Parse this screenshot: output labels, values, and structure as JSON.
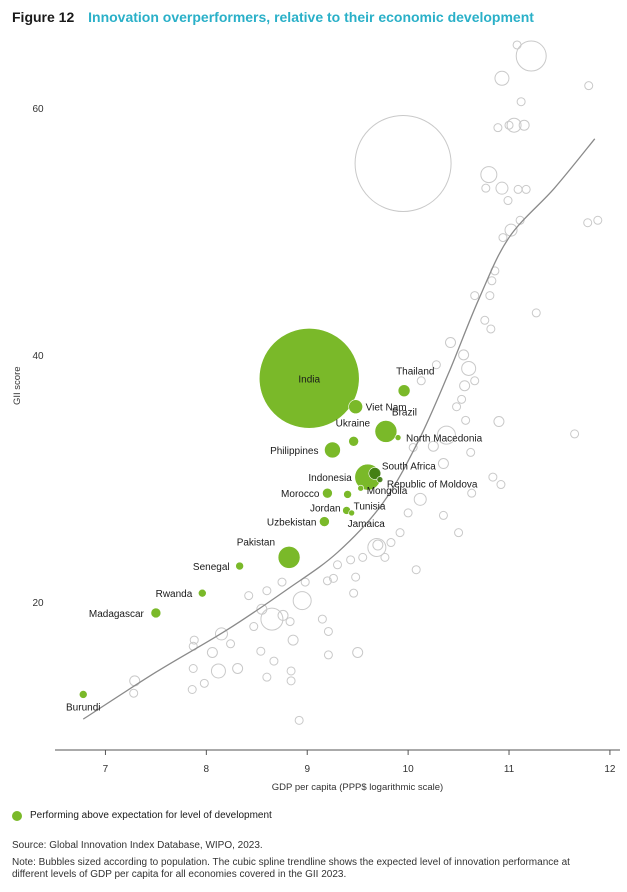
{
  "figure": {
    "label": "Figure 12",
    "title": "Innovation overperformers, relative to their economic development"
  },
  "chart_data": {
    "type": "scatter",
    "xlabel": "GDP per capita (PPP$ logarithmic scale)",
    "ylabel": "GII score",
    "xlim": [
      6.5,
      12.1
    ],
    "ylim": [
      8,
      65.5
    ],
    "xticks": [
      7,
      8,
      9,
      10,
      11,
      12
    ],
    "yticks": [
      20,
      40,
      60
    ],
    "colors": {
      "highlight": "#7ab929",
      "highlight_dark": "#3e7a12",
      "other": "#c9c9c9",
      "trend": "#8a8a8a"
    },
    "highlighted": [
      {
        "name": "India",
        "x": 9.02,
        "y": 38.1,
        "size": 50
      },
      {
        "name": "Thailand",
        "x": 9.96,
        "y": 37.1,
        "size": 6
      },
      {
        "name": "Viet Nam",
        "x": 9.48,
        "y": 35.8,
        "size": 7
      },
      {
        "name": "Brazil",
        "x": 9.78,
        "y": 33.8,
        "size": 11
      },
      {
        "name": "North Macedonia",
        "x": 9.9,
        "y": 33.3,
        "size": 3
      },
      {
        "name": "Ukraine",
        "x": 9.46,
        "y": 33,
        "size": 5
      },
      {
        "name": "Philippines",
        "x": 9.25,
        "y": 32.3,
        "size": 8
      },
      {
        "name": "Indonesia",
        "x": 9.6,
        "y": 30.1,
        "size": 13
      },
      {
        "name": "South Africa",
        "x": 9.67,
        "y": 30.4,
        "size": 6
      },
      {
        "name": "Republic of Moldova",
        "x": 9.72,
        "y": 29.9,
        "size": 3
      },
      {
        "name": "Mongolia",
        "x": 9.53,
        "y": 29.2,
        "size": 3
      },
      {
        "name": "Morocco",
        "x": 9.2,
        "y": 28.8,
        "size": 5
      },
      {
        "name": "Tunisia",
        "x": 9.4,
        "y": 28.7,
        "size": 4
      },
      {
        "name": "Jordan",
        "x": 9.39,
        "y": 27.4,
        "size": 4
      },
      {
        "name": "Jamaica",
        "x": 9.44,
        "y": 27.2,
        "size": 3
      },
      {
        "name": "Uzbekistan",
        "x": 9.17,
        "y": 26.5,
        "size": 5
      },
      {
        "name": "Pakistan",
        "x": 8.82,
        "y": 23.6,
        "size": 11
      },
      {
        "name": "Senegal",
        "x": 8.33,
        "y": 22.9,
        "size": 4
      },
      {
        "name": "Rwanda",
        "x": 7.96,
        "y": 20.7,
        "size": 4
      },
      {
        "name": "Madagascar",
        "x": 7.5,
        "y": 19.1,
        "size": 5
      },
      {
        "name": "Burundi",
        "x": 6.78,
        "y": 12.5,
        "size": 4
      }
    ],
    "others": [
      {
        "x": 9.95,
        "y": 55.5,
        "size": 48
      },
      {
        "x": 11.22,
        "y": 64.2,
        "size": 15
      },
      {
        "x": 11.08,
        "y": 65.1,
        "size": 4
      },
      {
        "x": 10.93,
        "y": 62.4,
        "size": 7
      },
      {
        "x": 11.12,
        "y": 60.5,
        "size": 4
      },
      {
        "x": 11.05,
        "y": 58.6,
        "size": 7
      },
      {
        "x": 10.89,
        "y": 58.4,
        "size": 4
      },
      {
        "x": 11.0,
        "y": 58.6,
        "size": 4
      },
      {
        "x": 11.15,
        "y": 58.6,
        "size": 5
      },
      {
        "x": 11.79,
        "y": 61.8,
        "size": 4
      },
      {
        "x": 10.8,
        "y": 54.6,
        "size": 8
      },
      {
        "x": 10.93,
        "y": 53.5,
        "size": 6
      },
      {
        "x": 10.77,
        "y": 53.5,
        "size": 4
      },
      {
        "x": 11.09,
        "y": 53.4,
        "size": 4
      },
      {
        "x": 11.17,
        "y": 53.4,
        "size": 4
      },
      {
        "x": 10.99,
        "y": 52.5,
        "size": 4
      },
      {
        "x": 11.02,
        "y": 50.1,
        "size": 6
      },
      {
        "x": 11.11,
        "y": 50.9,
        "size": 4
      },
      {
        "x": 10.94,
        "y": 49.5,
        "size": 4
      },
      {
        "x": 11.78,
        "y": 50.7,
        "size": 4
      },
      {
        "x": 11.88,
        "y": 50.9,
        "size": 4
      },
      {
        "x": 10.86,
        "y": 46.8,
        "size": 4
      },
      {
        "x": 10.83,
        "y": 46.0,
        "size": 4
      },
      {
        "x": 10.66,
        "y": 44.8,
        "size": 4
      },
      {
        "x": 10.81,
        "y": 44.8,
        "size": 4
      },
      {
        "x": 11.27,
        "y": 43.4,
        "size": 4
      },
      {
        "x": 10.76,
        "y": 42.8,
        "size": 4
      },
      {
        "x": 10.82,
        "y": 42.1,
        "size": 4
      },
      {
        "x": 10.42,
        "y": 41.0,
        "size": 5
      },
      {
        "x": 10.55,
        "y": 40.0,
        "size": 5
      },
      {
        "x": 10.6,
        "y": 38.9,
        "size": 7
      },
      {
        "x": 10.28,
        "y": 39.2,
        "size": 4
      },
      {
        "x": 10.56,
        "y": 37.5,
        "size": 5
      },
      {
        "x": 10.66,
        "y": 37.9,
        "size": 4
      },
      {
        "x": 10.13,
        "y": 37.9,
        "size": 4
      },
      {
        "x": 10.53,
        "y": 36.4,
        "size": 4
      },
      {
        "x": 10.48,
        "y": 35.8,
        "size": 4
      },
      {
        "x": 10.57,
        "y": 34.7,
        "size": 4
      },
      {
        "x": 10.9,
        "y": 34.6,
        "size": 5
      },
      {
        "x": 10.25,
        "y": 32.6,
        "size": 5
      },
      {
        "x": 10.38,
        "y": 33.5,
        "size": 9
      },
      {
        "x": 11.65,
        "y": 33.6,
        "size": 4
      },
      {
        "x": 10.62,
        "y": 32.1,
        "size": 4
      },
      {
        "x": 10.35,
        "y": 31.2,
        "size": 5
      },
      {
        "x": 10.05,
        "y": 32.5,
        "size": 4
      },
      {
        "x": 10.84,
        "y": 30.1,
        "size": 4
      },
      {
        "x": 10.92,
        "y": 29.5,
        "size": 4
      },
      {
        "x": 10.12,
        "y": 28.3,
        "size": 6
      },
      {
        "x": 10.63,
        "y": 28.8,
        "size": 4
      },
      {
        "x": 10.0,
        "y": 27.2,
        "size": 4
      },
      {
        "x": 10.35,
        "y": 27.0,
        "size": 4
      },
      {
        "x": 9.92,
        "y": 25.6,
        "size": 4
      },
      {
        "x": 10.5,
        "y": 25.6,
        "size": 4
      },
      {
        "x": 9.7,
        "y": 24.6,
        "size": 5
      },
      {
        "x": 9.83,
        "y": 24.8,
        "size": 4
      },
      {
        "x": 9.69,
        "y": 24.4,
        "size": 9
      },
      {
        "x": 9.55,
        "y": 23.6,
        "size": 4
      },
      {
        "x": 10.08,
        "y": 22.6,
        "size": 4
      },
      {
        "x": 9.77,
        "y": 23.6,
        "size": 4
      },
      {
        "x": 9.3,
        "y": 23.0,
        "size": 4
      },
      {
        "x": 9.43,
        "y": 23.4,
        "size": 4
      },
      {
        "x": 9.48,
        "y": 22.0,
        "size": 4
      },
      {
        "x": 9.26,
        "y": 21.9,
        "size": 4
      },
      {
        "x": 9.2,
        "y": 21.7,
        "size": 4
      },
      {
        "x": 8.98,
        "y": 21.6,
        "size": 4
      },
      {
        "x": 8.75,
        "y": 21.6,
        "size": 4
      },
      {
        "x": 9.46,
        "y": 20.7,
        "size": 4
      },
      {
        "x": 8.95,
        "y": 20.1,
        "size": 9
      },
      {
        "x": 8.6,
        "y": 20.9,
        "size": 4
      },
      {
        "x": 8.42,
        "y": 20.5,
        "size": 4
      },
      {
        "x": 8.55,
        "y": 19.4,
        "size": 5
      },
      {
        "x": 8.65,
        "y": 18.6,
        "size": 11
      },
      {
        "x": 8.76,
        "y": 18.9,
        "size": 5
      },
      {
        "x": 8.83,
        "y": 18.4,
        "size": 4
      },
      {
        "x": 8.47,
        "y": 18.0,
        "size": 4
      },
      {
        "x": 9.15,
        "y": 18.6,
        "size": 4
      },
      {
        "x": 9.21,
        "y": 17.6,
        "size": 4
      },
      {
        "x": 8.15,
        "y": 17.4,
        "size": 6
      },
      {
        "x": 7.88,
        "y": 16.9,
        "size": 4
      },
      {
        "x": 8.24,
        "y": 16.6,
        "size": 4
      },
      {
        "x": 8.86,
        "y": 16.9,
        "size": 5
      },
      {
        "x": 8.54,
        "y": 16.0,
        "size": 4
      },
      {
        "x": 7.87,
        "y": 16.4,
        "size": 4
      },
      {
        "x": 8.06,
        "y": 15.9,
        "size": 5
      },
      {
        "x": 9.21,
        "y": 15.7,
        "size": 4
      },
      {
        "x": 9.5,
        "y": 15.9,
        "size": 5
      },
      {
        "x": 8.67,
        "y": 15.2,
        "size": 4
      },
      {
        "x": 8.12,
        "y": 14.4,
        "size": 7
      },
      {
        "x": 7.87,
        "y": 14.6,
        "size": 4
      },
      {
        "x": 8.31,
        "y": 14.6,
        "size": 5
      },
      {
        "x": 8.84,
        "y": 14.4,
        "size": 4
      },
      {
        "x": 8.6,
        "y": 13.9,
        "size": 4
      },
      {
        "x": 7.29,
        "y": 13.6,
        "size": 5
      },
      {
        "x": 7.98,
        "y": 13.4,
        "size": 4
      },
      {
        "x": 8.84,
        "y": 13.6,
        "size": 4
      },
      {
        "x": 7.86,
        "y": 12.9,
        "size": 4
      },
      {
        "x": 7.28,
        "y": 12.6,
        "size": 4
      },
      {
        "x": 8.92,
        "y": 10.4,
        "size": 4
      }
    ],
    "trend": [
      {
        "x": 6.78,
        "y": 10.5
      },
      {
        "x": 7.5,
        "y": 14.3
      },
      {
        "x": 8.2,
        "y": 17.7
      },
      {
        "x": 8.8,
        "y": 21.0
      },
      {
        "x": 9.3,
        "y": 24.0
      },
      {
        "x": 9.75,
        "y": 28.0
      },
      {
        "x": 10.1,
        "y": 33.0
      },
      {
        "x": 10.4,
        "y": 38.5
      },
      {
        "x": 10.7,
        "y": 44.5
      },
      {
        "x": 11.0,
        "y": 49.5
      },
      {
        "x": 11.45,
        "y": 53.5
      },
      {
        "x": 11.85,
        "y": 57.5
      }
    ]
  },
  "legend": {
    "label": "Performing above expectation for level of development"
  },
  "source": "Source: Global Innovation Index Database, WIPO, 2023.",
  "note": "Note: Bubbles sized according to population. The cubic spline trendline shows the expected level of innovation performance at different levels of GDP per capita for all economies covered in the GII 2023."
}
